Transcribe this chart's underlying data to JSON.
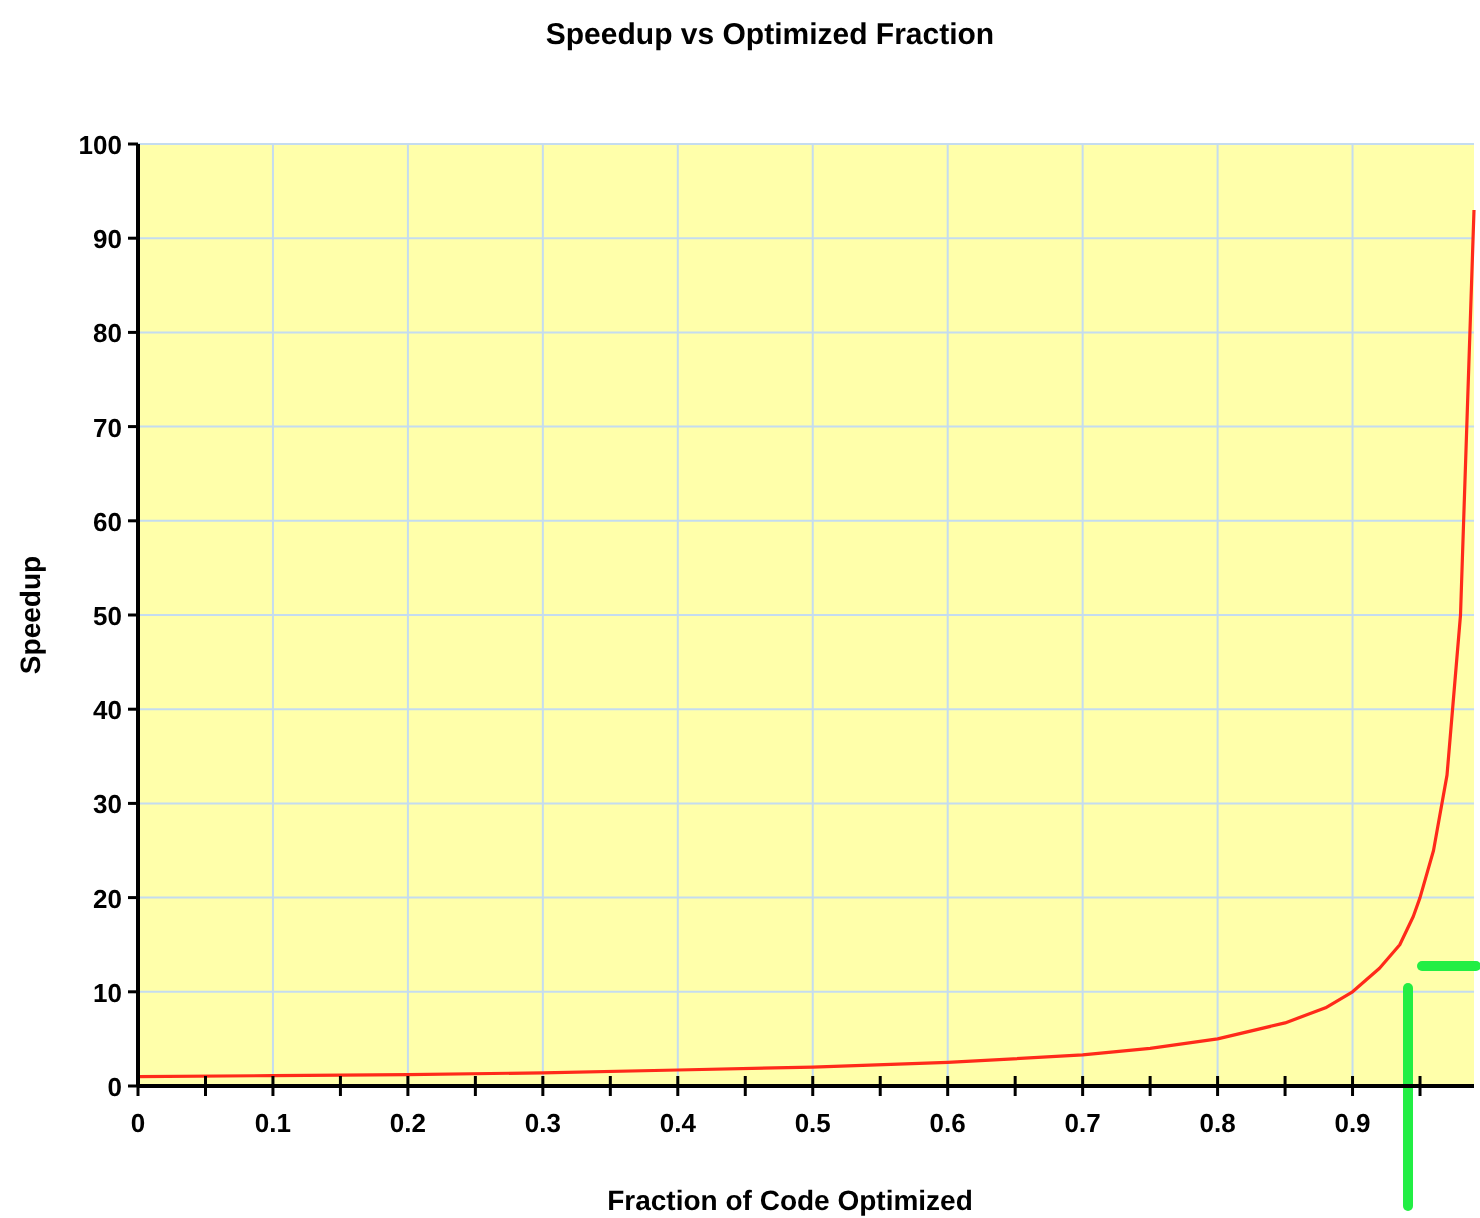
{
  "chart_data": {
    "type": "line",
    "title": "Speedup vs Optimized Fraction",
    "xlabel": "Fraction of Code Optimized",
    "ylabel": "Speedup",
    "x": [
      0,
      0.1,
      0.2,
      0.3,
      0.4,
      0.5,
      0.6,
      0.7,
      0.75,
      0.8,
      0.85,
      0.88,
      0.9,
      0.92,
      0.935,
      0.945,
      0.95,
      0.96,
      0.97,
      0.98,
      0.99
    ],
    "series": [
      {
        "color": "#ff2a1a",
        "values": [
          1,
          1.1,
          1.2,
          1.4,
          1.7,
          2,
          2.5,
          3.3,
          4,
          5,
          6.7,
          8.3,
          10,
          12.5,
          15,
          18,
          20,
          25,
          33,
          50,
          93
        ]
      }
    ],
    "xlim": [
      0,
      0.99
    ],
    "xticks": [
      0,
      {
        "value": 0.05,
        "label": null
      },
      0.1,
      {
        "value": 0.15,
        "label": null
      },
      0.2,
      {
        "value": 0.25,
        "label": null
      },
      0.3,
      {
        "value": 0.35,
        "label": null
      },
      0.4,
      {
        "value": 0.45,
        "label": null
      },
      0.5,
      {
        "value": 0.55,
        "label": null
      },
      0.6,
      {
        "value": 0.65,
        "label": null
      },
      0.7,
      {
        "value": 0.75,
        "label": null
      },
      0.8,
      {
        "value": 0.85,
        "label": null
      },
      0.9,
      {
        "value": 0.95,
        "label": null
      }
    ],
    "ylim": [
      0,
      100
    ],
    "yticks": [
      0,
      10,
      20,
      30,
      40,
      50,
      60,
      70,
      80,
      90,
      100
    ],
    "grid": true,
    "marker": "none",
    "line_style": "solid"
  }
}
